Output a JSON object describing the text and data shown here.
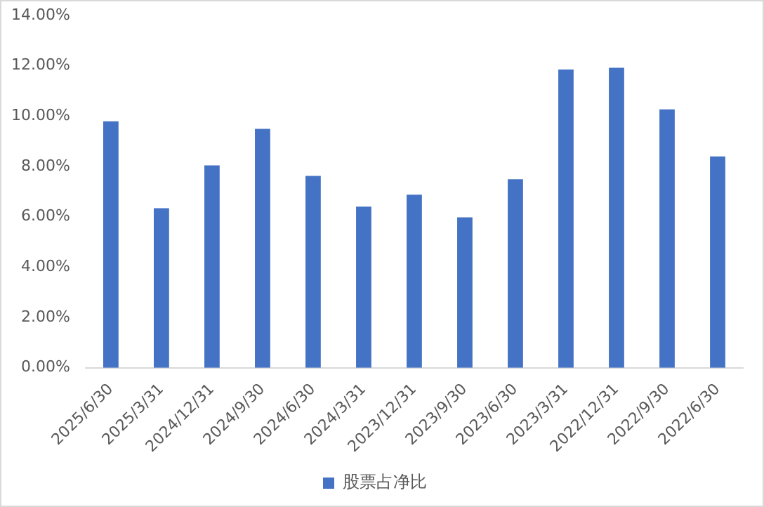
{
  "chart_data": {
    "type": "bar",
    "categories": [
      "2025/6/30",
      "2025/3/31",
      "2024/12/31",
      "2024/9/30",
      "2024/6/30",
      "2024/3/31",
      "2023/12/31",
      "2023/9/30",
      "2023/6/30",
      "2023/3/31",
      "2022/12/31",
      "2022/9/30",
      "2022/6/30"
    ],
    "series": [
      {
        "name": "股票占净比",
        "color": "#4472c4",
        "values": [
          9.79,
          6.34,
          8.04,
          9.49,
          7.62,
          6.4,
          6.88,
          5.98,
          7.49,
          11.85,
          11.92,
          10.27,
          8.4
        ]
      }
    ],
    "ylim": [
      0,
      14
    ],
    "yticks": [
      {
        "value": 0,
        "label": "0.00%"
      },
      {
        "value": 2,
        "label": "2.00%"
      },
      {
        "value": 4,
        "label": "4.00%"
      },
      {
        "value": 6,
        "label": "6.00%"
      },
      {
        "value": 8,
        "label": "8.00%"
      },
      {
        "value": 10,
        "label": "10.00%"
      },
      {
        "value": 12,
        "label": "12.00%"
      },
      {
        "value": 14,
        "label": "14.00%"
      }
    ],
    "grid": false,
    "legend": "bottom"
  }
}
